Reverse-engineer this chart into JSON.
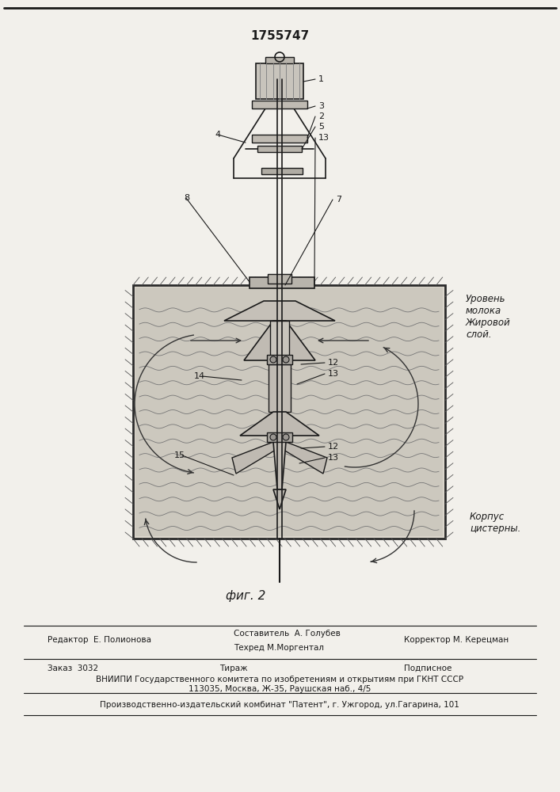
{
  "patent_number": "1755747",
  "fig_label": "фиг. 2",
  "bg_color": "#f2f0eb",
  "line_color": "#1a1a1a",
  "side_text_urov": "Уровень\nмолока\nЖировой\nслой.",
  "side_text_korp": "Корпус\nцистерны.",
  "footer_editor": "Редактор  Е. Полионова",
  "footer_author": "Составитель  А. Голубев",
  "footer_techred": "Техред М.Моргентал",
  "footer_corrector": "Корректор М. Керецман",
  "footer_zakaz": "Заказ  3032",
  "footer_tirazh": "Тираж",
  "footer_podpisnoe": "Подписное",
  "footer_vniiipi": "ВНИИПИ Государственного комитета по изобретениям и открытиям при ГКНТ СССР",
  "footer_address": "113035, Москва, Ж-35, Раушская наб., 4/5",
  "footer_patent": "Производственно-издательский комбинат \"Патент\", г. Ужгород, ул.Гагарина, 101"
}
